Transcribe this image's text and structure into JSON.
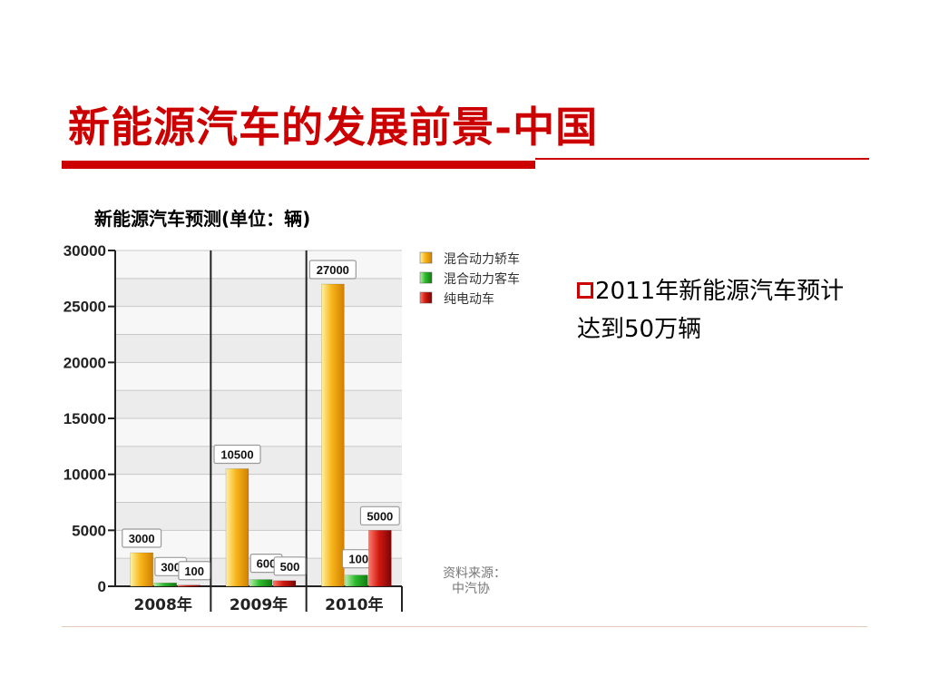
{
  "slide": {
    "title": "新能源汽车的发展前景-中国",
    "bullet_text": "2011年新能源汽车预计达到50万辆",
    "source_label": "资料来源：",
    "source_name": "中汽协"
  },
  "colors": {
    "title_red": "#cc0000",
    "series": [
      "#f5b81c",
      "#22b022",
      "#cc1111"
    ]
  },
  "chart_data": {
    "type": "bar",
    "title": "新能源汽车预测(单位：辆)",
    "categories": [
      "2008年",
      "2009年",
      "2010年"
    ],
    "series": [
      {
        "name": "混合动力轿车",
        "values": [
          3000,
          10500,
          27000
        ],
        "labels": [
          "3000",
          "10500",
          "27000"
        ]
      },
      {
        "name": "混合动力客车",
        "values": [
          300,
          600,
          1000
        ],
        "labels": [
          "300",
          "600",
          "1000"
        ]
      },
      {
        "name": "纯电动车",
        "values": [
          100,
          500,
          5000
        ],
        "labels": [
          "100",
          "500",
          "5000"
        ]
      }
    ],
    "ylim": [
      0,
      30000
    ],
    "yticks": [
      "0",
      "5000",
      "10000",
      "15000",
      "20000",
      "25000",
      "30000"
    ],
    "grid": true,
    "legend_position": "top-right"
  }
}
